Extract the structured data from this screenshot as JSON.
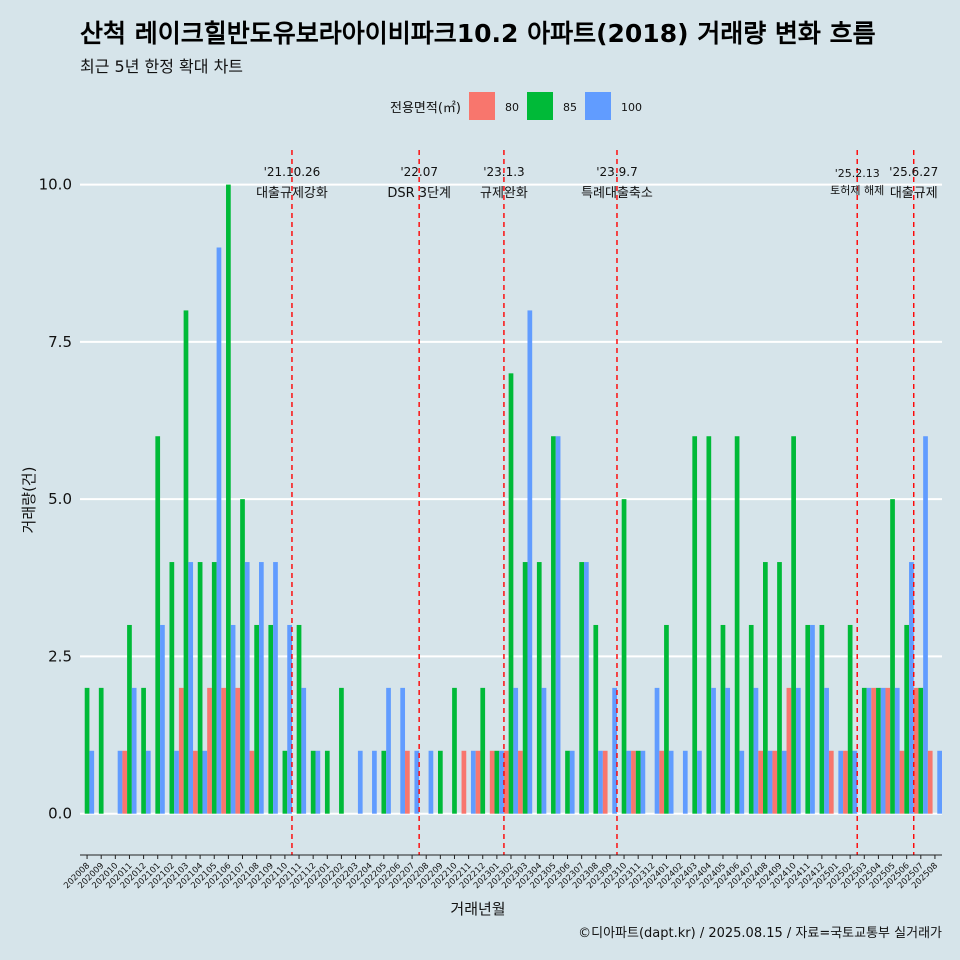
{
  "title": "산척 레이크힐반도유보라아이비파크10.2 아파트(2018) 거래량 변화 흐름",
  "subtitle": "최근 5년 한정 확대 차트",
  "caption": "©디아파트(dapt.kr) / 2025.08.15 / 자료=국토교통부 실거래가",
  "colors": {
    "80": "#f8766d",
    "85": "#00ba38",
    "100": "#619cff",
    "background": "#d6e4ea",
    "event_line": "#ff0000"
  },
  "chart_data": {
    "type": "bar",
    "xlabel": "거래년월",
    "ylabel": "거래량(건)",
    "legend_title": "전용면적(㎡)",
    "legend_position": "top",
    "grid": "horizontal major lines",
    "ylim": [
      -0.45,
      10.55
    ],
    "yticks": [
      0.0,
      2.5,
      5.0,
      7.5,
      10.0
    ],
    "ytick_labels": [
      "0.0",
      "2.5",
      "5.0",
      "7.5",
      "10.0"
    ],
    "categories": [
      "202008",
      "202009",
      "202010",
      "202011",
      "202012",
      "202101",
      "202102",
      "202103",
      "202104",
      "202105",
      "202106",
      "202107",
      "202108",
      "202109",
      "202110",
      "202111",
      "202112",
      "202201",
      "202202",
      "202203",
      "202204",
      "202205",
      "202206",
      "202207",
      "202208",
      "202209",
      "202210",
      "202211",
      "202212",
      "202301",
      "202302",
      "202303",
      "202304",
      "202305",
      "202306",
      "202307",
      "202308",
      "202309",
      "202310",
      "202311",
      "202312",
      "202401",
      "202402",
      "202403",
      "202404",
      "202405",
      "202406",
      "202407",
      "202408",
      "202409",
      "202410",
      "202411",
      "202412",
      "202501",
      "202502",
      "202503",
      "202504",
      "202505",
      "202506",
      "202507",
      "202508"
    ],
    "series": [
      {
        "name": "80",
        "values": [
          0,
          0,
          0,
          1,
          0,
          0,
          0,
          2,
          1,
          2,
          2,
          2,
          1,
          0,
          0,
          0,
          0,
          0,
          0,
          0,
          0,
          0,
          0,
          1,
          0,
          0,
          0,
          1,
          1,
          1,
          1,
          1,
          0,
          0,
          0,
          0,
          0,
          1,
          0,
          1,
          0,
          1,
          0,
          0,
          0,
          0,
          0,
          0,
          1,
          1,
          2,
          0,
          0,
          1,
          1,
          0,
          2,
          2,
          1,
          2,
          1
        ]
      },
      {
        "name": "85",
        "values": [
          2,
          2,
          0,
          3,
          2,
          6,
          4,
          8,
          4,
          4,
          10,
          5,
          3,
          3,
          1,
          3,
          1,
          1,
          2,
          0,
          0,
          1,
          0,
          0,
          0,
          1,
          2,
          0,
          2,
          1,
          7,
          4,
          4,
          6,
          1,
          4,
          3,
          0,
          5,
          1,
          0,
          3,
          0,
          6,
          6,
          3,
          6,
          3,
          4,
          4,
          6,
          3,
          3,
          0,
          3,
          2,
          2,
          5,
          3,
          2,
          0
        ]
      },
      {
        "name": "100",
        "values": [
          1,
          0,
          1,
          2,
          1,
          3,
          1,
          4,
          1,
          9,
          3,
          4,
          4,
          4,
          3,
          2,
          1,
          0,
          0,
          1,
          1,
          2,
          2,
          1,
          1,
          0,
          0,
          1,
          0,
          1,
          2,
          8,
          2,
          6,
          1,
          4,
          1,
          2,
          1,
          1,
          2,
          1,
          1,
          1,
          2,
          2,
          1,
          2,
          1,
          1,
          2,
          3,
          2,
          1,
          1,
          2,
          2,
          2,
          4,
          6,
          1
        ]
      }
    ],
    "events": [
      {
        "after_index": 14,
        "date": "'21.10.26",
        "label": "대출규제강화"
      },
      {
        "after_index": 23,
        "date": "'22.07",
        "label": "DSR 3단계"
      },
      {
        "after_index": 29,
        "date": "'23.1.3",
        "label": "규제완화"
      },
      {
        "after_index": 37,
        "date": "'23.9.7",
        "label": "특례대출축소"
      },
      {
        "after_index": 54,
        "date": "'25.2.13",
        "label": "토허제 해제"
      },
      {
        "after_index": 58,
        "date": "'25.6.27",
        "label": "대출규제"
      }
    ]
  }
}
